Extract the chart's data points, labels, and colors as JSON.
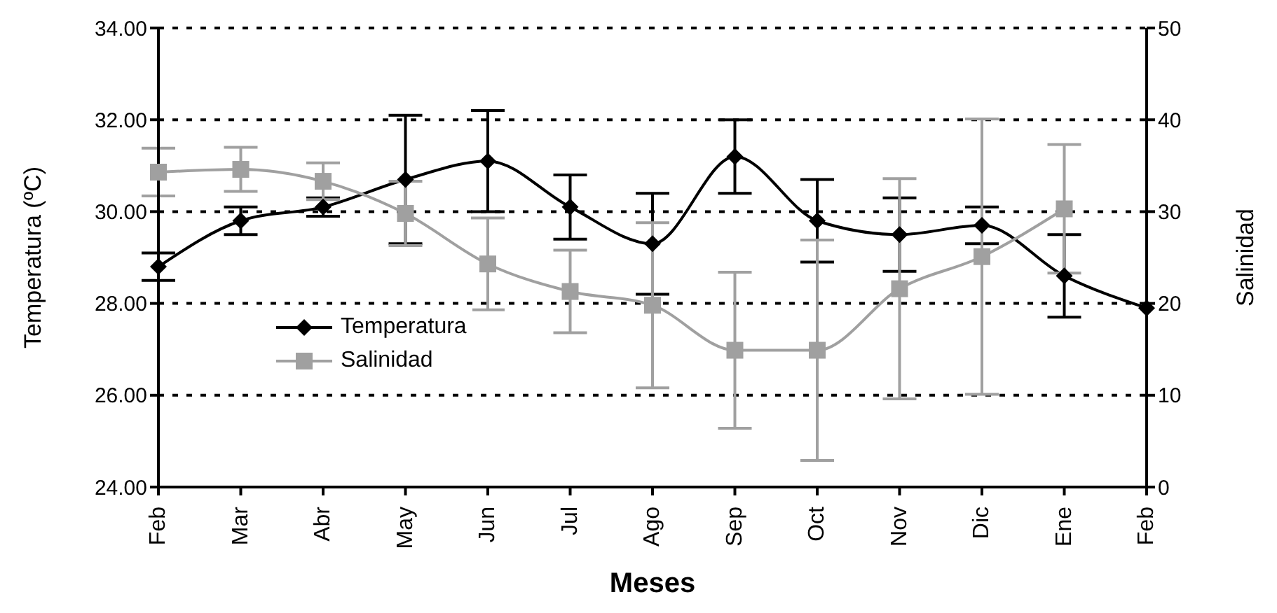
{
  "chart_data": {
    "type": "line",
    "xlabel": "Meses",
    "ylabel": "Temperatura (ºC)",
    "y2label": "Salinidad",
    "categories": [
      "Feb",
      "Mar",
      "Abr",
      "May",
      "Jun",
      "Jul",
      "Ago",
      "Sep",
      "Oct",
      "Nov",
      "Dic",
      "Ene",
      "Feb"
    ],
    "series": [
      {
        "name": "Temperatura",
        "color": "#000000",
        "marker": "diamond",
        "values": [
          28.8,
          29.8,
          30.1,
          30.7,
          31.1,
          30.1,
          29.3,
          31.2,
          29.8,
          29.5,
          29.7,
          28.6,
          27.9
        ],
        "errors": [
          0.3,
          0.3,
          0.2,
          1.4,
          1.1,
          0.7,
          1.1,
          0.8,
          0.9,
          0.8,
          0.4,
          0.9,
          null
        ]
      },
      {
        "name": "Salinidad",
        "color": "#a0a0a0",
        "marker": "square",
        "axis": "y2",
        "values": [
          34.3,
          34.6,
          33.3,
          29.8,
          24.3,
          21.3,
          19.8,
          14.9,
          14.9,
          21.6,
          25.1,
          30.3,
          null
        ],
        "errors": [
          2.6,
          2.4,
          2,
          3.5,
          5,
          4.5,
          9,
          8.5,
          12,
          12,
          15,
          7,
          null
        ]
      }
    ],
    "ylim": [
      24,
      34
    ],
    "yticks": [
      {
        "value": 24,
        "label": "24.00"
      },
      {
        "value": 26,
        "label": "26.00"
      },
      {
        "value": 28,
        "label": "28.00"
      },
      {
        "value": 30,
        "label": "30.00"
      },
      {
        "value": 32,
        "label": "32.00"
      },
      {
        "value": 34,
        "label": "34.00"
      }
    ],
    "y2lim": [
      0,
      50
    ],
    "y2ticks": [
      0,
      10,
      20,
      30,
      40,
      50
    ],
    "grid": "y",
    "legend": "left",
    "line_style": "solid"
  }
}
